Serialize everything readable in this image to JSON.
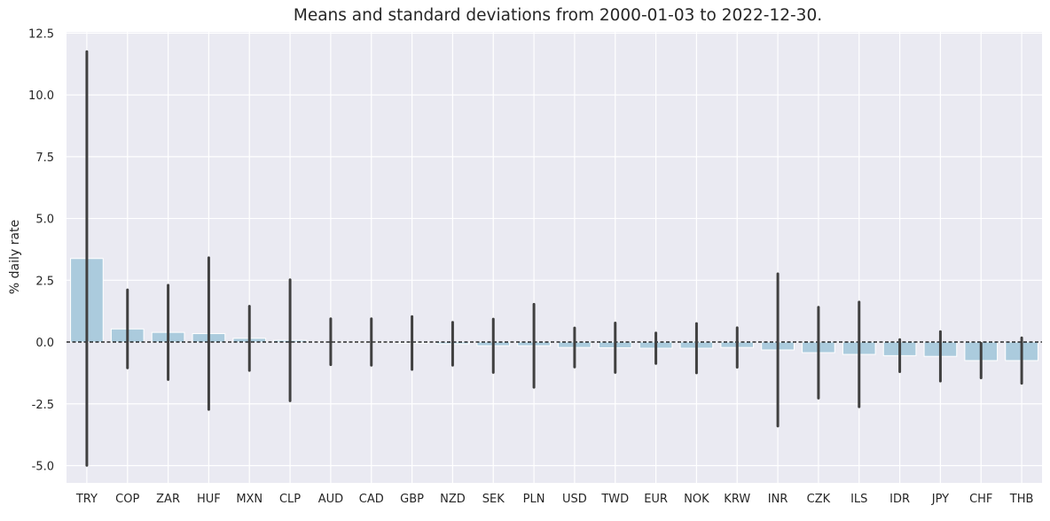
{
  "chart_data": {
    "type": "bar",
    "title": "Means and standard deviations from 2000-01-03 to 2022-12-30.",
    "xlabel": "",
    "ylabel": "% daily rate",
    "ylim": [
      -5.7,
      12.55
    ],
    "yticks": [
      "-5.0",
      "-2.5",
      "0.0",
      "2.5",
      "5.0",
      "7.5",
      "10.0",
      "12.5"
    ],
    "grid": true,
    "reference_line": {
      "y": 0,
      "style": "dashed",
      "color": "#000000"
    },
    "categories": [
      "TRY",
      "COP",
      "ZAR",
      "HUF",
      "MXN",
      "CLP",
      "AUD",
      "CAD",
      "GBP",
      "NZD",
      "SEK",
      "PLN",
      "USD",
      "TWD",
      "EUR",
      "NOK",
      "KRW",
      "INR",
      "CZK",
      "ILS",
      "IDR",
      "JPY",
      "CHF",
      "THB"
    ],
    "series": [
      {
        "values": [
          3.38,
          0.53,
          0.39,
          0.34,
          0.15,
          0.07,
          0.01,
          0.0,
          -0.04,
          -0.07,
          -0.15,
          -0.15,
          -0.22,
          -0.23,
          -0.25,
          -0.25,
          -0.22,
          -0.32,
          -0.43,
          -0.5,
          -0.55,
          -0.58,
          -0.75,
          -0.75
        ],
        "std": [
          8.37,
          1.58,
          1.91,
          3.07,
          1.3,
          2.45,
          0.93,
          0.94,
          1.07,
          0.87,
          1.08,
          1.68,
          0.79,
          1.0,
          0.62,
          1.0,
          0.8,
          3.08,
          1.84,
          2.12,
          0.65,
          1.0,
          0.7,
          0.92
        ]
      }
    ],
    "colors": {
      "bar": "#abcbdd",
      "error": "#404040",
      "background": "#eaeaf2",
      "grid": "#ffffff"
    }
  }
}
